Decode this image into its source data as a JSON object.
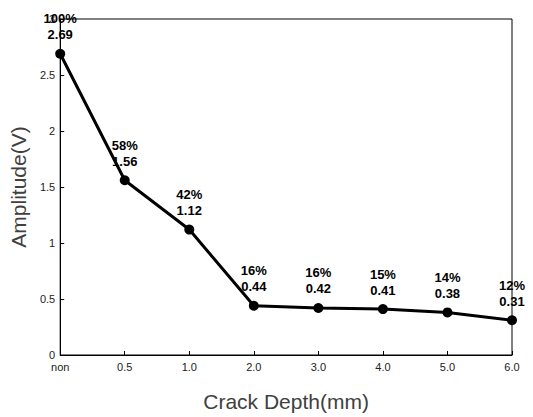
{
  "chart_data": {
    "type": "line",
    "x_label": "Crack Depth(mm)",
    "y_label": "Amplitude(V)",
    "categories": [
      "non",
      "0.5",
      "1.0",
      "2.0",
      "3.0",
      "4.0",
      "5.0",
      "6.0"
    ],
    "values": [
      2.69,
      1.56,
      1.12,
      0.44,
      0.42,
      0.41,
      0.38,
      0.31
    ],
    "value_labels": [
      "100%\n2.69",
      "58%\n1.56",
      "42%\n1.12",
      "16%\n0.44",
      "16%\n0.42",
      "15%\n0.41",
      "14%\n0.38",
      "12%\n0.31"
    ],
    "data_labels": true,
    "color": "#000000",
    "marker": "circle",
    "line_style": "solid",
    "ylim": [
      0,
      3
    ],
    "yticks": [
      0,
      0.5,
      1,
      1.5,
      2,
      2.5,
      3
    ],
    "grid": false
  }
}
